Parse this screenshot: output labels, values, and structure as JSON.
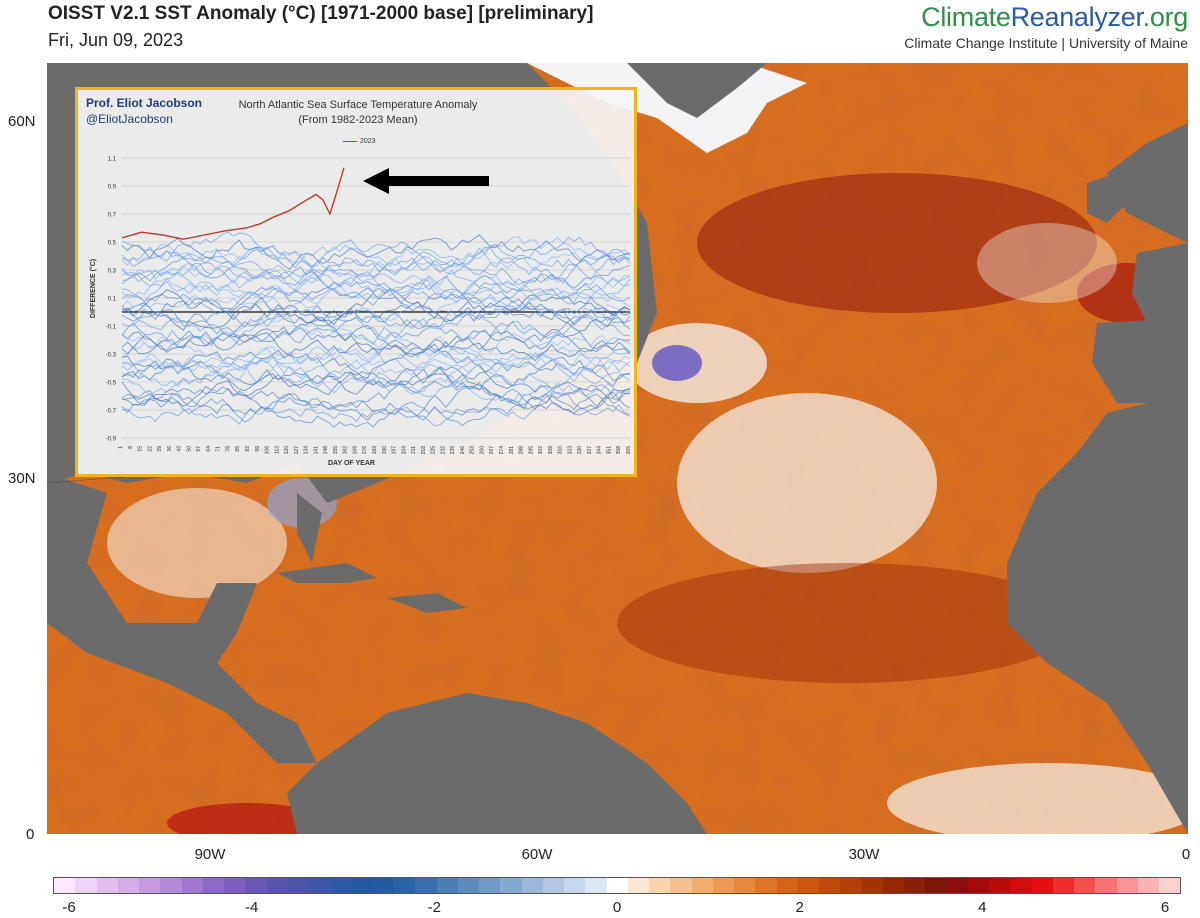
{
  "header": {
    "title": "OISST V2.1 SST Anomaly (°C) [1971-2000 base] [preliminary]",
    "date": "Fri, Jun 09, 2023"
  },
  "brand": {
    "name_climate": "Climate",
    "name_reanalyzer": "Reanalyzer",
    "name_org": ".org",
    "subtitle": "Climate Change Institute | University of Maine"
  },
  "map": {
    "lat_labels": [
      "60N",
      "30N",
      "0"
    ],
    "lon_labels": [
      "90W",
      "60W",
      "30W",
      "0"
    ],
    "colors": {
      "land": "#6b6b6b",
      "ice": "#f4f4f6",
      "ocean_warm": "#d86f1d",
      "ocean_hot": "#8f1a0c",
      "ocean_cool": "#f6f3ee",
      "cold_blue": "#6a86c6"
    }
  },
  "colorbar": {
    "tick_labels": [
      "-6",
      "-4",
      "-2",
      "0",
      "2",
      "4",
      "6"
    ],
    "colors": [
      "#fbe8fb",
      "#efd4f5",
      "#e2c0ee",
      "#d4ade7",
      "#c59ae0",
      "#b488d8",
      "#a178cf",
      "#8e6ac4",
      "#7b5fbb",
      "#6a58b3",
      "#5a55ac",
      "#4a55a8",
      "#3c57a6",
      "#2f58a5",
      "#24589f",
      "#225c9e",
      "#2a64a3",
      "#3a70ab",
      "#4c7db4",
      "#5e8abd",
      "#729ac7",
      "#86a9d0",
      "#9bb8da",
      "#b0c8e2",
      "#c5d8eb",
      "#dce7f3",
      "#ffffff",
      "#fbe6d1",
      "#f7d3b0",
      "#f4c190",
      "#f0ae71",
      "#eb9a55",
      "#e5873c",
      "#de7427",
      "#d66416",
      "#cc560e",
      "#c04a0b",
      "#b23e08",
      "#a43306",
      "#962904",
      "#882004",
      "#7a1805",
      "#8c0d0d",
      "#a30b0b",
      "#ba0b0b",
      "#d10d0d",
      "#e61010",
      "#f02d2d",
      "#f44f4f",
      "#f77373",
      "#f99595",
      "#fbb4b4",
      "#fdd0d0"
    ]
  },
  "inset": {
    "author": "Prof. Eliot Jacobson",
    "handle": "@EliotJacobson",
    "title_line1": "North Atlantic Sea Surface Temperature Anomaly",
    "title_line2": "(From 1982-2023 Mean)",
    "legend_label": "2023",
    "ylabel": "DIFFERENCE (°C)",
    "xlabel": "DAY OF YEAR"
  },
  "chart_data": {
    "type": "line",
    "title": "North Atlantic Sea Surface Temperature Anomaly",
    "subtitle": "(From 1982-2023 Mean)",
    "xlabel": "DAY OF YEAR",
    "ylabel": "DIFFERENCE (°C)",
    "xlim": [
      1,
      365
    ],
    "ylim": [
      -0.9,
      1.1
    ],
    "yticks": [
      1.1,
      0.9,
      0.7,
      0.5,
      0.3,
      0.1,
      -0.1,
      -0.3,
      -0.5,
      -0.7,
      -0.9
    ],
    "xticks": [
      1,
      8,
      15,
      22,
      29,
      36,
      43,
      50,
      57,
      64,
      71,
      78,
      85,
      92,
      99,
      106,
      113,
      120,
      127,
      134,
      141,
      148,
      155,
      162,
      169,
      176,
      183,
      190,
      197,
      204,
      211,
      218,
      225,
      232,
      239,
      246,
      253,
      260,
      267,
      274,
      281,
      288,
      295,
      302,
      309,
      316,
      323,
      330,
      337,
      344,
      351,
      358,
      365
    ],
    "grid": true,
    "legend_position": "top",
    "series": [
      {
        "name": "2023",
        "color": "#c0392b",
        "x": [
          1,
          15,
          30,
          45,
          60,
          75,
          90,
          100,
          110,
          120,
          130,
          140,
          145,
          150,
          155,
          160
        ],
        "y": [
          0.53,
          0.57,
          0.55,
          0.52,
          0.55,
          0.58,
          0.6,
          0.63,
          0.68,
          0.72,
          0.78,
          0.84,
          0.8,
          0.7,
          0.86,
          1.03
        ]
      }
    ]
  }
}
